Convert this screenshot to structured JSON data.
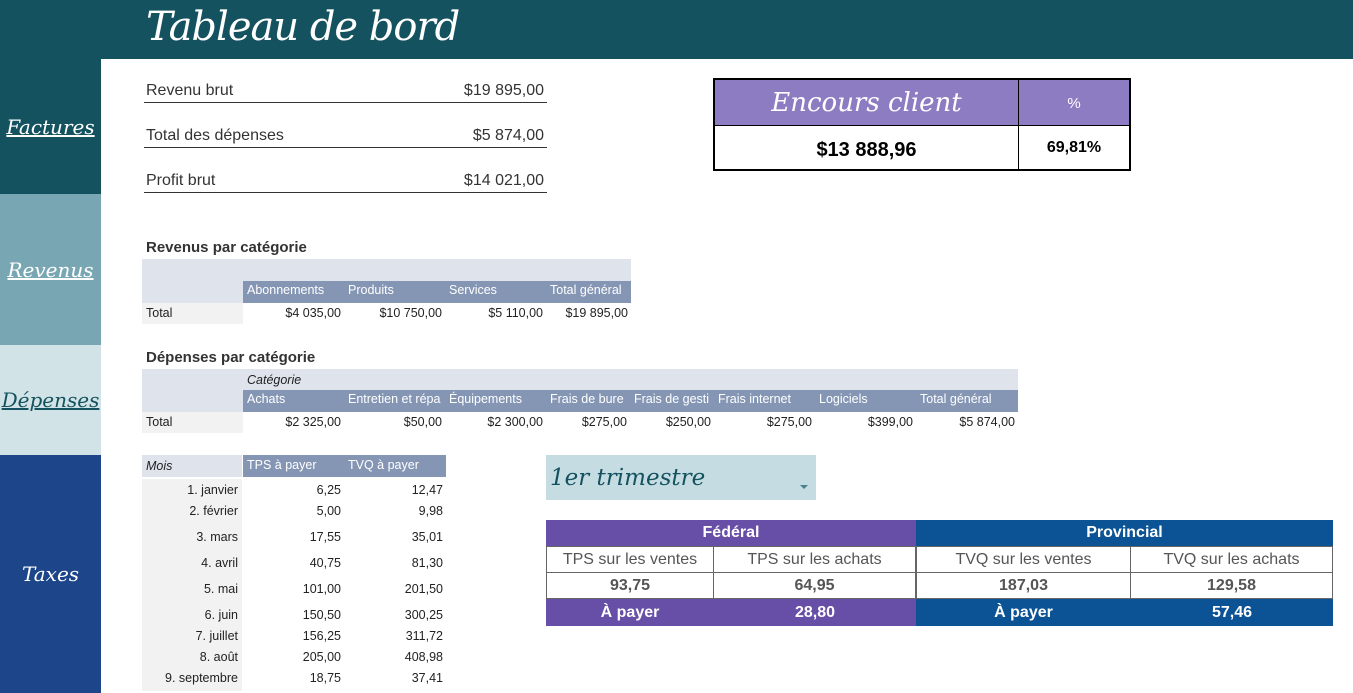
{
  "header": {
    "title": "Tableau de bord"
  },
  "nav": {
    "factures": "Factures",
    "revenus": "Revenus",
    "depenses": "Dépenses",
    "taxes": "Taxes"
  },
  "summary": [
    {
      "label": "Revenu brut",
      "value": "$19 895,00"
    },
    {
      "label": "Total des dépenses",
      "value": "$5 874,00"
    },
    {
      "label": "Profit brut",
      "value": "$14 021,00"
    }
  ],
  "encours": {
    "title": "Encours client",
    "pct_header": "%",
    "value": "$13 888,96",
    "pct": "69,81%"
  },
  "revenus": {
    "title": "Revenus par catégorie",
    "columns": [
      "Abonnements",
      "Produits",
      "Services",
      "Total général"
    ],
    "row_label": "Total",
    "values": [
      "$4 035,00",
      "$10 750,00",
      "$5 110,00",
      "$19 895,00"
    ]
  },
  "depenses": {
    "title": "Dépenses par catégorie",
    "category_label": "Catégorie",
    "columns": [
      "Achats",
      "Entretien et répa",
      "Équipements",
      "Frais de bure",
      "Frais de gesti",
      "Frais internet",
      "Logiciels",
      "Total général"
    ],
    "row_label": "Total",
    "values": [
      "$2 325,00",
      "$50,00",
      "$2 300,00",
      "$275,00",
      "$250,00",
      "$275,00",
      "$399,00",
      "$5 874,00"
    ]
  },
  "taxes": {
    "month_header": "Mois",
    "tps_header": "TPS à payer",
    "tvq_header": "TVQ à payer",
    "rows": [
      {
        "month": "1. janvier",
        "tps": "6,25",
        "tvq": "12,47"
      },
      {
        "month": "2. février",
        "tps": "5,00",
        "tvq": "9,98"
      },
      {
        "month": "3. mars",
        "tps": "17,55",
        "tvq": "35,01"
      },
      {
        "month": "4. avril",
        "tps": "40,75",
        "tvq": "81,30"
      },
      {
        "month": "5. mai",
        "tps": "101,00",
        "tvq": "201,50"
      },
      {
        "month": "6. juin",
        "tps": "150,50",
        "tvq": "300,25"
      },
      {
        "month": "7. juillet",
        "tps": "156,25",
        "tvq": "311,72"
      },
      {
        "month": "8. août",
        "tps": "205,00",
        "tvq": "408,98"
      },
      {
        "month": "9. septembre",
        "tps": "18,75",
        "tvq": "37,41"
      }
    ]
  },
  "trimestre": {
    "selected": "1er trimestre"
  },
  "tax_summary": {
    "federal": "Fédéral",
    "provincial": "Provincial",
    "tps_ventes": "TPS sur les ventes",
    "tps_achats": "TPS sur les achats",
    "tvq_ventes": "TVQ sur les ventes",
    "tvq_achats": "TVQ sur les achats",
    "tps_ventes_val": "93,75",
    "tps_achats_val": "64,95",
    "tvq_ventes_val": "187,03",
    "tvq_achats_val": "129,58",
    "a_payer": "À payer",
    "fed_payer_val": "28,80",
    "prov_payer_val": "57,46"
  },
  "colors": {
    "header": "#14525f",
    "revenus_nav": "#78a6b2",
    "depenses_nav": "#d1e3e6",
    "taxes_nav": "#1c458a",
    "federal": "#674ea7",
    "provincial": "#0b5394",
    "encours": "#8e7cc3"
  }
}
